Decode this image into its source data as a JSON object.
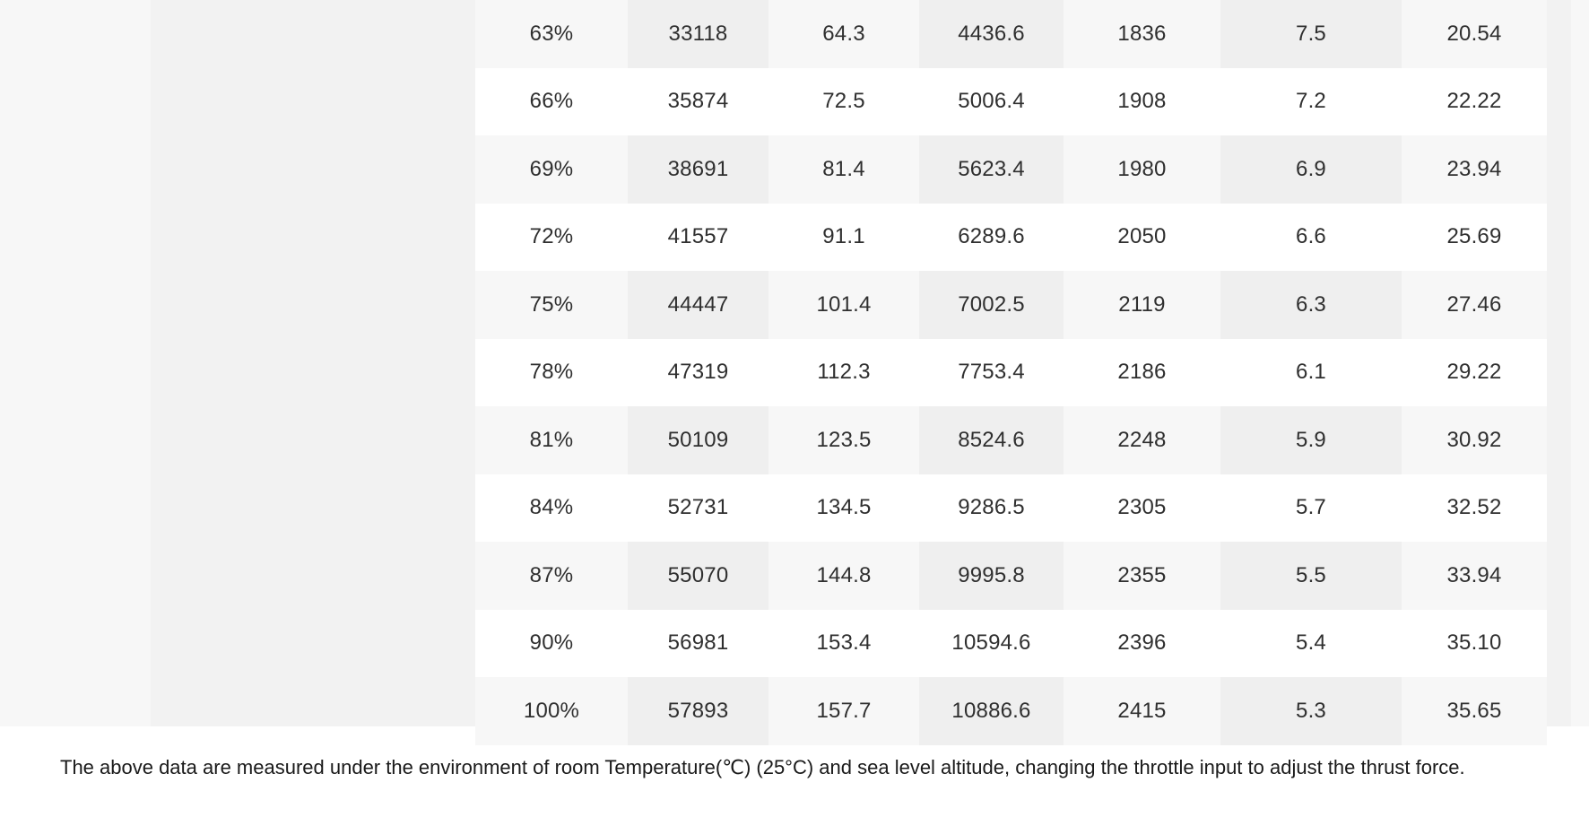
{
  "table": {
    "rows": [
      [
        "63%",
        "33118",
        "64.3",
        "4436.6",
        "1836",
        "7.5",
        "20.54"
      ],
      [
        "66%",
        "35874",
        "72.5",
        "5006.4",
        "1908",
        "7.2",
        "22.22"
      ],
      [
        "69%",
        "38691",
        "81.4",
        "5623.4",
        "1980",
        "6.9",
        "23.94"
      ],
      [
        "72%",
        "41557",
        "91.1",
        "6289.6",
        "2050",
        "6.6",
        "25.69"
      ],
      [
        "75%",
        "44447",
        "101.4",
        "7002.5",
        "2119",
        "6.3",
        "27.46"
      ],
      [
        "78%",
        "47319",
        "112.3",
        "7753.4",
        "2186",
        "6.1",
        "29.22"
      ],
      [
        "81%",
        "50109",
        "123.5",
        "8524.6",
        "2248",
        "5.9",
        "30.92"
      ],
      [
        "84%",
        "52731",
        "134.5",
        "9286.5",
        "2305",
        "5.7",
        "32.52"
      ],
      [
        "87%",
        "55070",
        "144.8",
        "9995.8",
        "2355",
        "5.5",
        "33.94"
      ],
      [
        "90%",
        "56981",
        "153.4",
        "10594.6",
        "2396",
        "5.4",
        "35.10"
      ],
      [
        "100%",
        "57893",
        "157.7",
        "10886.6",
        "2415",
        "5.3",
        "35.65"
      ]
    ]
  },
  "footnote": "The above data are measured under the environment of room Temperature(℃) (25°C) and sea level altitude, changing the throttle input to adjust the thrust force."
}
